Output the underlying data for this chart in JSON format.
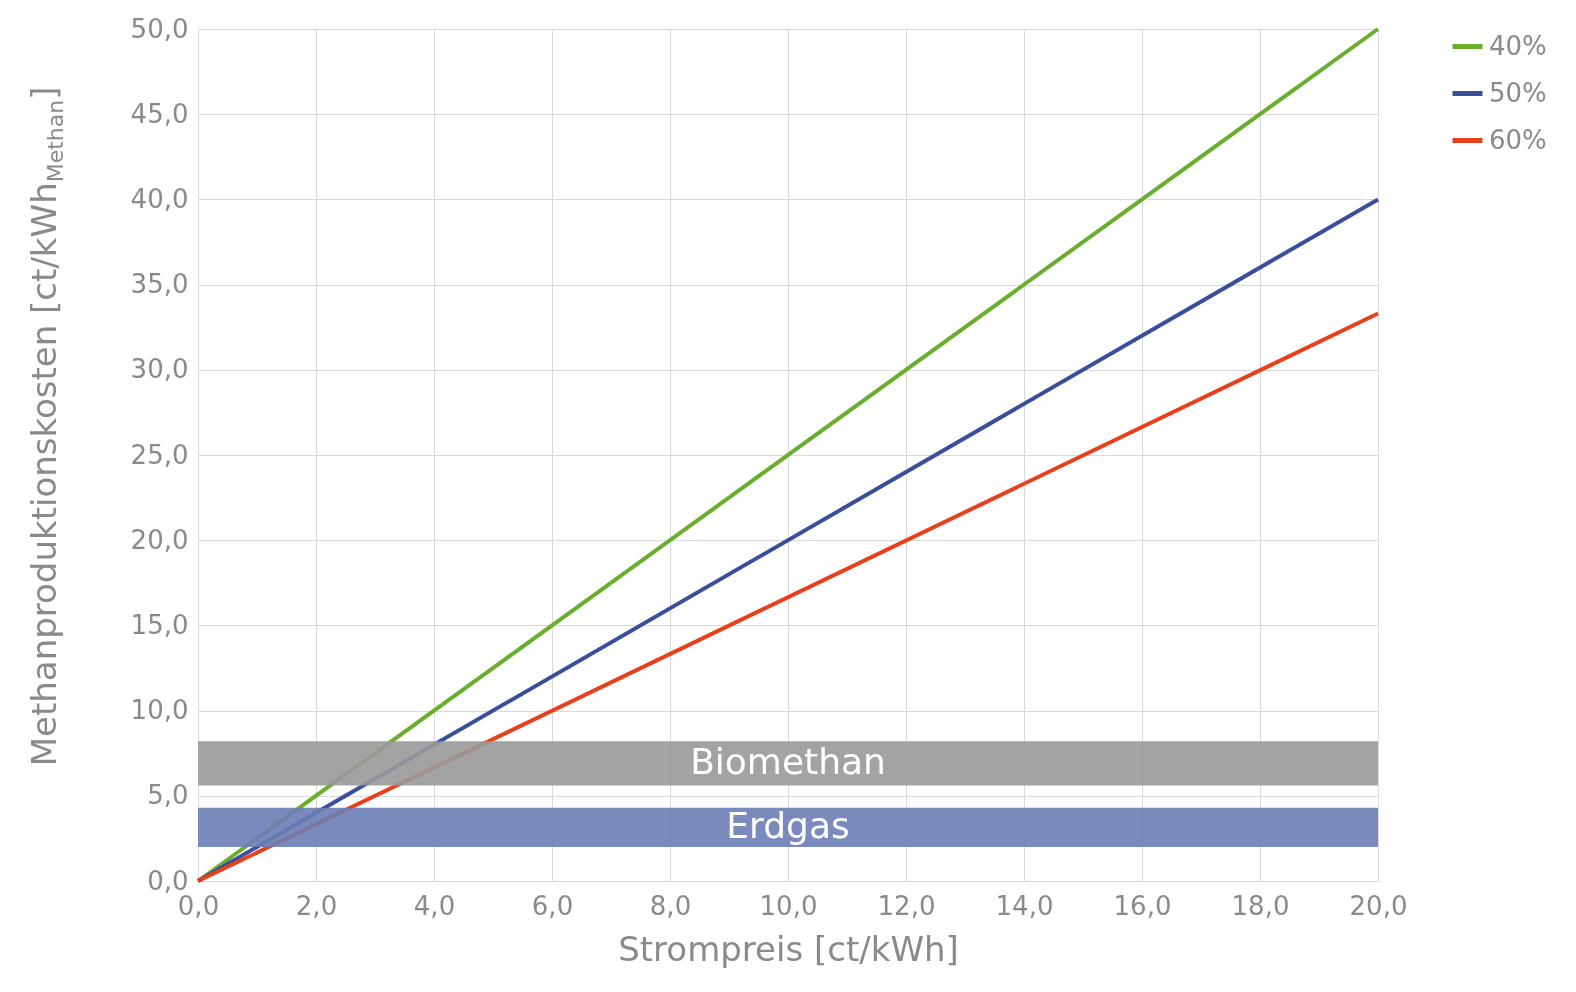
{
  "chart_data": {
    "type": "line",
    "xlabel": "Strompreis [ct/kWh]",
    "ylabel": "Methanproduktionskosten [ct/kWh$_{Methan}$]",
    "x": [
      0,
      20
    ],
    "series": [
      {
        "name": "40%",
        "color": "#6aae2e",
        "values": [
          0,
          50
        ]
      },
      {
        "name": "50%",
        "color": "#3a4f9c",
        "values": [
          0,
          40
        ]
      },
      {
        "name": "60%",
        "color": "#e8401c",
        "values": [
          0,
          33.3
        ]
      }
    ],
    "bands": [
      {
        "axis": "y",
        "from": 5.6,
        "to": 8.2,
        "label": "Biomethan",
        "color": "#999999"
      },
      {
        "axis": "y",
        "from": 2.0,
        "to": 4.3,
        "label": "Erdgas",
        "color": "#6d7db5"
      }
    ],
    "xlim": [
      0,
      20
    ],
    "xticks": [
      {
        "value": 0,
        "label": "0,0"
      },
      {
        "value": 2,
        "label": "2,0"
      },
      {
        "value": 4,
        "label": "4,0"
      },
      {
        "value": 6,
        "label": "6,0"
      },
      {
        "value": 8,
        "label": "8,0"
      },
      {
        "value": 10,
        "label": "10,0"
      },
      {
        "value": 12,
        "label": "12,0"
      },
      {
        "value": 14,
        "label": "14,0"
      },
      {
        "value": 16,
        "label": "16,0"
      },
      {
        "value": 18,
        "label": "18,0"
      },
      {
        "value": 20,
        "label": "20,0"
      }
    ],
    "ylim": [
      0,
      50
    ],
    "yticks": [
      {
        "value": 0,
        "label": "0,0"
      },
      {
        "value": 5,
        "label": "5,0"
      },
      {
        "value": 10,
        "label": "10,0"
      },
      {
        "value": 15,
        "label": "15,0"
      },
      {
        "value": 20,
        "label": "20,0"
      },
      {
        "value": 25,
        "label": "25,0"
      },
      {
        "value": 30,
        "label": "30,0"
      },
      {
        "value": 35,
        "label": "35,0"
      },
      {
        "value": 40,
        "label": "40,0"
      },
      {
        "value": 45,
        "label": "45,0"
      },
      {
        "value": 50,
        "label": "50,0"
      }
    ],
    "grid": true,
    "legend": "right"
  }
}
